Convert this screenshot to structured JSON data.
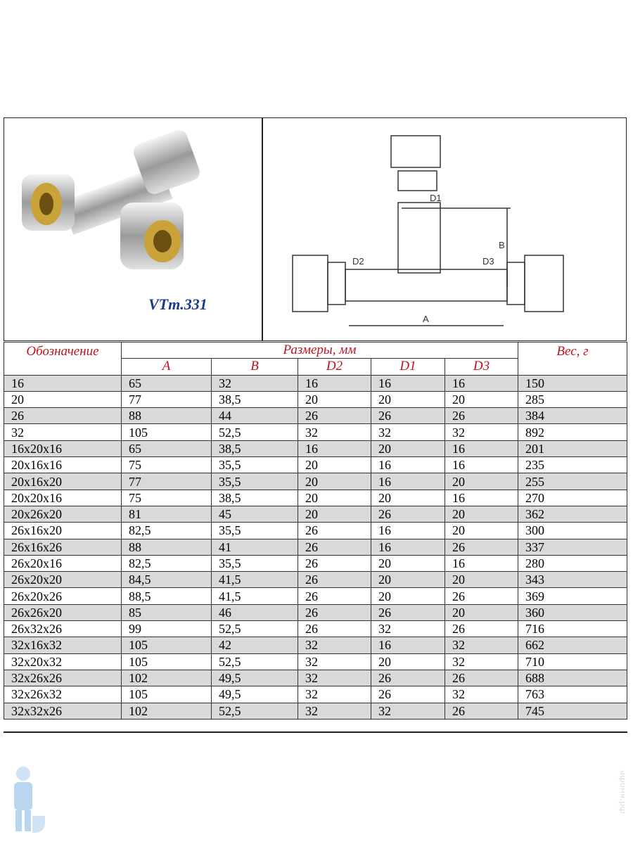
{
  "product": {
    "model": "VTm.331"
  },
  "drawing_labels": {
    "d1": "D1",
    "d2": "D2",
    "d3": "D3",
    "a": "A",
    "b": "B"
  },
  "table": {
    "header": {
      "designation": "Обозначение",
      "dimensions": "Размеры, мм",
      "weight": "Вес, г",
      "sub": [
        "A",
        "B",
        "D2",
        "D1",
        "D3"
      ]
    },
    "rows": [
      [
        "16",
        "65",
        "32",
        "16",
        "16",
        "16",
        "150"
      ],
      [
        "20",
        "77",
        "38,5",
        "20",
        "20",
        "20",
        "285"
      ],
      [
        "26",
        "88",
        "44",
        "26",
        "26",
        "26",
        "384"
      ],
      [
        "32",
        "105",
        "52,5",
        "32",
        "32",
        "32",
        "892"
      ],
      [
        "16x20x16",
        "65",
        "38,5",
        "16",
        "20",
        "16",
        "201"
      ],
      [
        "20x16x16",
        "75",
        "35,5",
        "20",
        "16",
        "16",
        "235"
      ],
      [
        "20x16x20",
        "77",
        "35,5",
        "20",
        "16",
        "20",
        "255"
      ],
      [
        "20x20x16",
        "75",
        "38,5",
        "20",
        "20",
        "16",
        "270"
      ],
      [
        "20x26x20",
        "81",
        "45",
        "20",
        "26",
        "20",
        "362"
      ],
      [
        "26x16x20",
        "82,5",
        "35,5",
        "26",
        "16",
        "20",
        "300"
      ],
      [
        "26x16x26",
        "88",
        "41",
        "26",
        "16",
        "26",
        "337"
      ],
      [
        "26x20x16",
        "82,5",
        "35,5",
        "26",
        "20",
        "16",
        "280"
      ],
      [
        "26x20x20",
        "84,5",
        "41,5",
        "26",
        "20",
        "20",
        "343"
      ],
      [
        "26x20x26",
        "88,5",
        "41,5",
        "26",
        "20",
        "26",
        "369"
      ],
      [
        "26x26x20",
        "85",
        "46",
        "26",
        "26",
        "20",
        "360"
      ],
      [
        "26x32x26",
        "99",
        "52,5",
        "26",
        "32",
        "26",
        "716"
      ],
      [
        "32x16x32",
        "105",
        "42",
        "32",
        "16",
        "32",
        "662"
      ],
      [
        "32x20x32",
        "105",
        "52,5",
        "32",
        "20",
        "32",
        "710"
      ],
      [
        "32x26x26",
        "102",
        "49,5",
        "32",
        "26",
        "26",
        "688"
      ],
      [
        "32x26x32",
        "105",
        "49,5",
        "32",
        "26",
        "32",
        "763"
      ],
      [
        "32x32x26",
        "102",
        "52,5",
        "32",
        "32",
        "26",
        "745"
      ]
    ]
  },
  "watermark": "афоня.рф",
  "colors": {
    "header_text": "#c0141c",
    "model_text": "#1a3a8a",
    "row_shade": "#d9d9d9"
  }
}
